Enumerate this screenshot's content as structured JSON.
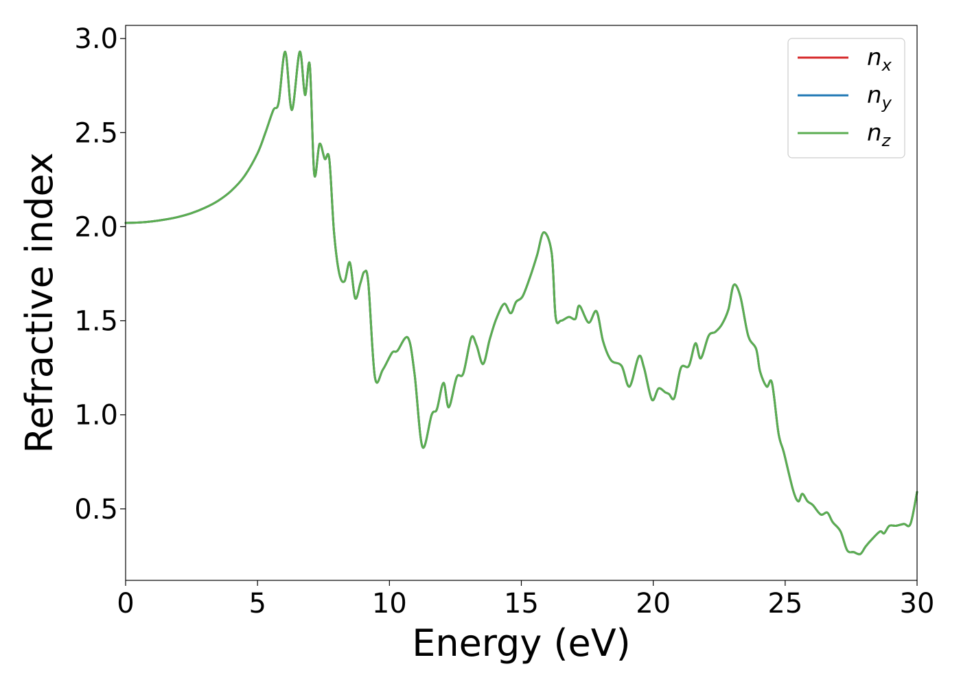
{
  "chart_data": {
    "type": "line",
    "xlabel": "Energy (eV)",
    "ylabel": "Refractive index",
    "xlim": [
      0,
      30
    ],
    "ylim": [
      0.12,
      3.07
    ],
    "xticks": [
      0,
      5,
      10,
      15,
      20,
      25,
      30
    ],
    "xtick_labels": [
      "0",
      "5",
      "10",
      "15",
      "20",
      "25",
      "30"
    ],
    "yticks": [
      0.5,
      1.0,
      1.5,
      2.0,
      2.5,
      3.0
    ],
    "ytick_labels": [
      "0.5",
      "1.0",
      "1.5",
      "2.0",
      "2.5",
      "3.0"
    ],
    "grid": false,
    "legend_position": "top-right",
    "x": [
      0,
      0.5,
      1,
      1.5,
      2,
      2.5,
      3,
      3.5,
      4,
      4.5,
      5,
      5.3,
      5.6,
      5.8,
      6.05,
      6.3,
      6.6,
      6.8,
      6.98,
      7.15,
      7.35,
      7.55,
      7.72,
      7.9,
      8.1,
      8.3,
      8.5,
      8.7,
      8.9,
      9.05,
      9.2,
      9.45,
      9.75,
      10.1,
      10.3,
      10.7,
      10.95,
      11.25,
      11.6,
      11.8,
      12.05,
      12.25,
      12.55,
      12.8,
      13.1,
      13.3,
      13.55,
      13.8,
      14.05,
      14.35,
      14.6,
      14.8,
      15.05,
      15.35,
      15.6,
      15.85,
      16.15,
      16.3,
      16.5,
      16.8,
      17.05,
      17.2,
      17.55,
      17.85,
      18.1,
      18.4,
      18.8,
      19.1,
      19.45,
      19.65,
      19.95,
      20.2,
      20.45,
      20.6,
      20.8,
      21.05,
      21.35,
      21.6,
      21.8,
      22.1,
      22.35,
      22.6,
      22.85,
      23.05,
      23.3,
      23.6,
      23.9,
      24.05,
      24.3,
      24.5,
      24.75,
      24.95,
      25.3,
      25.5,
      25.65,
      25.85,
      26.05,
      26.35,
      26.6,
      26.8,
      27.1,
      27.35,
      27.6,
      27.85,
      28.05,
      28.3,
      28.6,
      28.75,
      28.95,
      29.2,
      29.5,
      29.75,
      30
    ]
  },
  "series": [
    {
      "name": "n",
      "subscript": "x",
      "color": "#d62728",
      "values": [
        2.02,
        2.022,
        2.028,
        2.038,
        2.052,
        2.072,
        2.1,
        2.137,
        2.19,
        2.268,
        2.39,
        2.5,
        2.62,
        2.66,
        2.93,
        2.62,
        2.93,
        2.7,
        2.86,
        2.28,
        2.44,
        2.36,
        2.36,
        1.97,
        1.75,
        1.71,
        1.81,
        1.62,
        1.7,
        1.76,
        1.7,
        1.2,
        1.24,
        1.33,
        1.34,
        1.41,
        1.22,
        0.83,
        1.0,
        1.03,
        1.17,
        1.04,
        1.2,
        1.22,
        1.41,
        1.37,
        1.27,
        1.4,
        1.51,
        1.59,
        1.54,
        1.6,
        1.63,
        1.74,
        1.85,
        1.97,
        1.86,
        1.52,
        1.5,
        1.52,
        1.51,
        1.58,
        1.49,
        1.55,
        1.39,
        1.29,
        1.26,
        1.15,
        1.31,
        1.25,
        1.08,
        1.14,
        1.12,
        1.11,
        1.09,
        1.25,
        1.26,
        1.38,
        1.3,
        1.42,
        1.44,
        1.48,
        1.56,
        1.69,
        1.63,
        1.42,
        1.35,
        1.23,
        1.15,
        1.17,
        0.9,
        0.8,
        0.6,
        0.54,
        0.58,
        0.54,
        0.52,
        0.47,
        0.48,
        0.43,
        0.38,
        0.28,
        0.27,
        0.26,
        0.3,
        0.34,
        0.38,
        0.37,
        0.41,
        0.41,
        0.42,
        0.42,
        0.59
      ]
    },
    {
      "name": "n",
      "subscript": "y",
      "color": "#1f77b4",
      "values": [
        2.02,
        2.022,
        2.028,
        2.038,
        2.052,
        2.072,
        2.1,
        2.137,
        2.19,
        2.268,
        2.39,
        2.5,
        2.62,
        2.66,
        2.93,
        2.62,
        2.93,
        2.7,
        2.86,
        2.28,
        2.44,
        2.36,
        2.36,
        1.97,
        1.75,
        1.71,
        1.81,
        1.62,
        1.7,
        1.76,
        1.7,
        1.2,
        1.24,
        1.33,
        1.34,
        1.41,
        1.22,
        0.83,
        1.0,
        1.03,
        1.17,
        1.04,
        1.2,
        1.22,
        1.41,
        1.37,
        1.27,
        1.4,
        1.51,
        1.59,
        1.54,
        1.6,
        1.63,
        1.74,
        1.85,
        1.97,
        1.86,
        1.52,
        1.5,
        1.52,
        1.51,
        1.58,
        1.49,
        1.55,
        1.39,
        1.29,
        1.26,
        1.15,
        1.31,
        1.25,
        1.08,
        1.14,
        1.12,
        1.11,
        1.09,
        1.25,
        1.26,
        1.38,
        1.3,
        1.42,
        1.44,
        1.48,
        1.56,
        1.69,
        1.63,
        1.42,
        1.35,
        1.23,
        1.15,
        1.17,
        0.9,
        0.8,
        0.6,
        0.54,
        0.58,
        0.54,
        0.52,
        0.47,
        0.48,
        0.43,
        0.38,
        0.28,
        0.27,
        0.26,
        0.3,
        0.34,
        0.38,
        0.37,
        0.41,
        0.41,
        0.42,
        0.42,
        0.59
      ]
    },
    {
      "name": "n",
      "subscript": "z",
      "color": "#5aad50",
      "values": [
        2.02,
        2.022,
        2.028,
        2.038,
        2.052,
        2.072,
        2.1,
        2.137,
        2.19,
        2.268,
        2.39,
        2.5,
        2.62,
        2.66,
        2.93,
        2.62,
        2.93,
        2.7,
        2.86,
        2.28,
        2.44,
        2.36,
        2.36,
        1.97,
        1.75,
        1.71,
        1.81,
        1.62,
        1.7,
        1.76,
        1.7,
        1.2,
        1.24,
        1.33,
        1.34,
        1.41,
        1.22,
        0.83,
        1.0,
        1.03,
        1.17,
        1.04,
        1.2,
        1.22,
        1.41,
        1.37,
        1.27,
        1.4,
        1.51,
        1.59,
        1.54,
        1.6,
        1.63,
        1.74,
        1.85,
        1.97,
        1.86,
        1.52,
        1.5,
        1.52,
        1.51,
        1.58,
        1.49,
        1.55,
        1.39,
        1.29,
        1.26,
        1.15,
        1.31,
        1.25,
        1.08,
        1.14,
        1.12,
        1.11,
        1.09,
        1.25,
        1.26,
        1.38,
        1.3,
        1.42,
        1.44,
        1.48,
        1.56,
        1.69,
        1.63,
        1.42,
        1.35,
        1.23,
        1.15,
        1.17,
        0.9,
        0.8,
        0.6,
        0.54,
        0.58,
        0.54,
        0.52,
        0.47,
        0.48,
        0.43,
        0.38,
        0.28,
        0.27,
        0.26,
        0.3,
        0.34,
        0.38,
        0.37,
        0.41,
        0.41,
        0.42,
        0.42,
        0.59
      ]
    }
  ]
}
